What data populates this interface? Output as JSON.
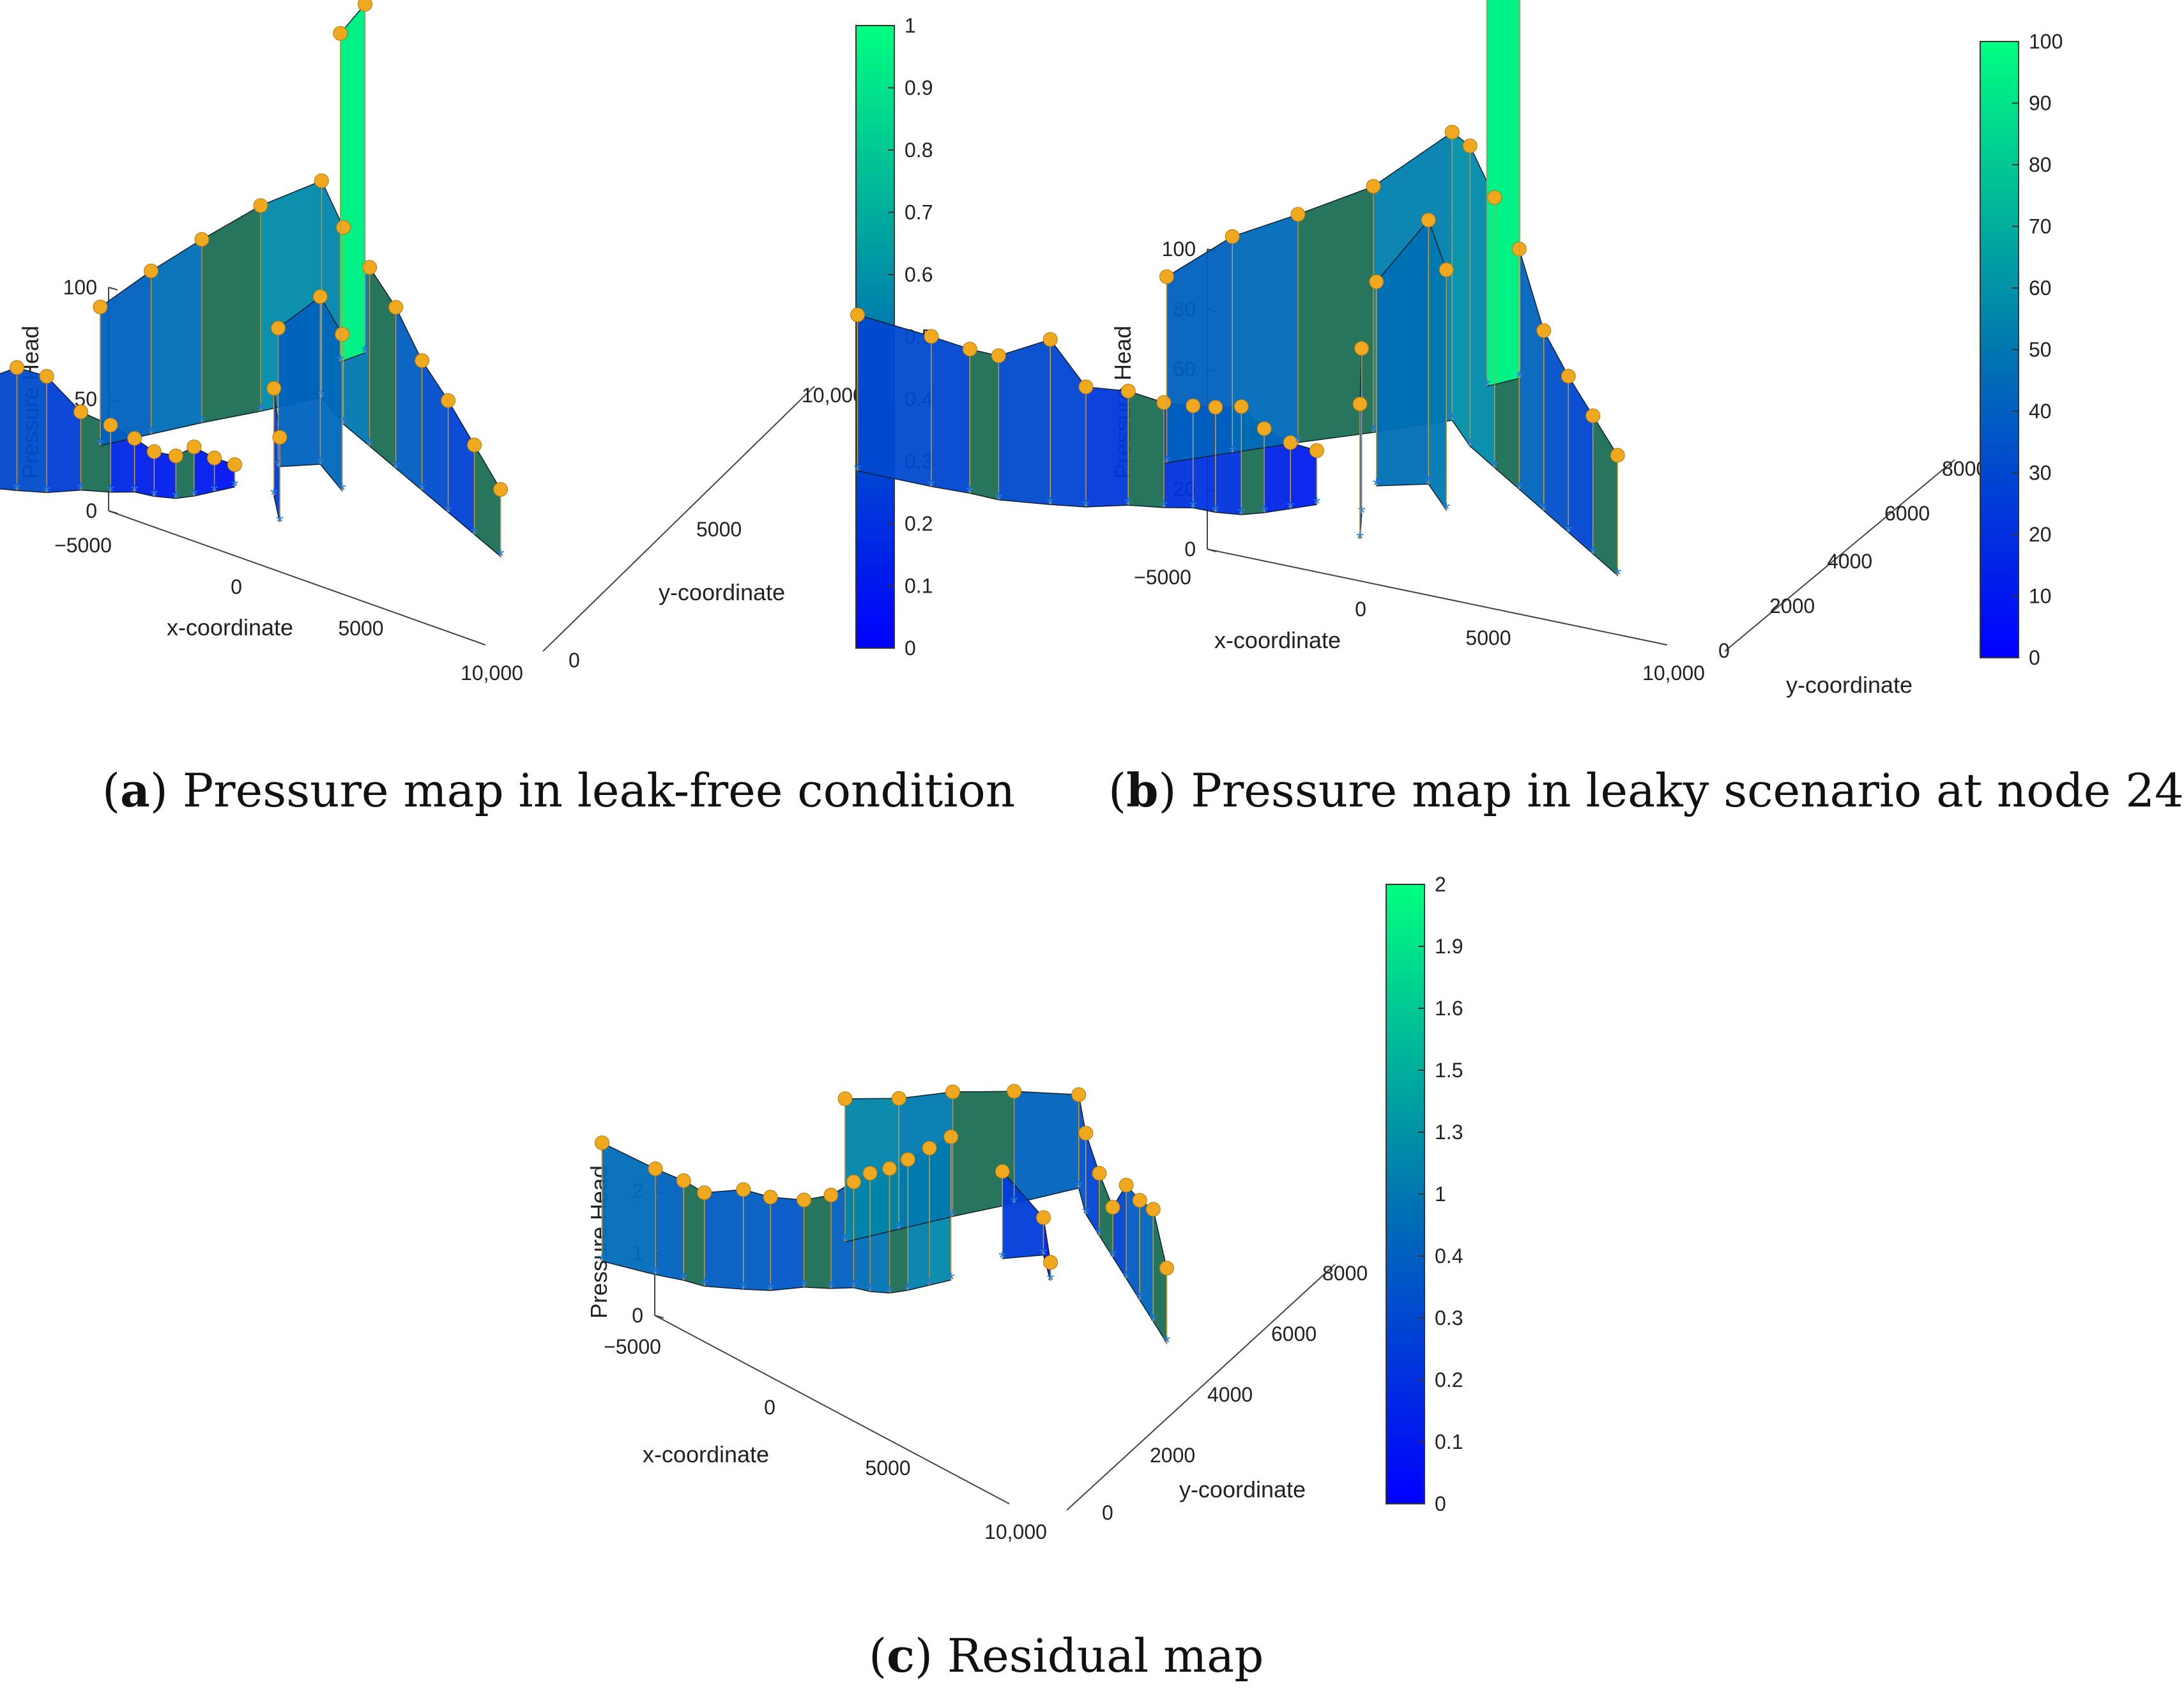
{
  "colormap": {
    "low": "#0000ff",
    "mid": "#0077b0",
    "high": "#00ff80",
    "surface_dark": "#1c6e55",
    "node_marker": "#f0a81e",
    "base_marker": "#2b7bd4"
  },
  "chart_data": [
    {
      "id": "a",
      "type": "surface3d",
      "caption_letter": "a",
      "caption_text": ") Pressure map in leak-free condition",
      "xlabel": "x-coordinate",
      "ylabel": "y-coordinate",
      "zlabel": "Pressure Head",
      "xticks": [
        "−5000",
        "0",
        "5000",
        "10,000"
      ],
      "yticks": [
        "0",
        "5000",
        "10,000"
      ],
      "zticks": [
        "0",
        "50",
        "100"
      ],
      "colorbar_range": [
        0,
        1
      ],
      "colorbar_ticks": [
        "0",
        "0.1",
        "0.2",
        "0.3",
        "0.4",
        "0.5",
        "0.6",
        "0.7",
        "0.8",
        "0.9",
        "1"
      ],
      "node_heights": [
        58,
        50,
        47,
        46,
        55,
        52,
        35,
        30,
        24,
        20,
        19,
        22,
        15,
        10,
        62,
        73,
        82,
        92,
        97,
        88,
        80,
        72,
        58,
        50,
        40,
        30,
        62,
        75,
        70,
        48,
        38,
        147,
        156
      ]
    },
    {
      "id": "b",
      "type": "surface3d",
      "caption_letter": "b",
      "caption_text": ") Pressure map in leaky scenario at node 24",
      "xlabel": "x-coordinate",
      "ylabel": "y-coordinate",
      "zlabel": "Pressure Head",
      "xticks": [
        "−5000",
        "0",
        "5000",
        "10,000"
      ],
      "yticks": [
        "0",
        "2000",
        "4000",
        "6000",
        "8000"
      ],
      "zticks": [
        "0",
        "20",
        "40",
        "60",
        "80",
        "100"
      ],
      "colorbar_range": [
        0,
        100
      ],
      "colorbar_ticks": [
        "0",
        "10",
        "20",
        "30",
        "40",
        "50",
        "60",
        "70",
        "80",
        "90",
        "100"
      ],
      "node_heights": [
        52,
        50,
        48,
        48,
        55,
        40,
        38,
        35,
        34,
        35,
        36,
        28,
        22,
        18,
        62,
        72,
        76,
        82,
        96,
        100,
        90,
        80,
        60,
        52,
        46,
        40,
        68,
        88,
        80,
        55,
        45,
        140,
        150
      ]
    },
    {
      "id": "c",
      "type": "surface3d",
      "caption_letter": "c",
      "caption_text": ") Residual map",
      "xlabel": "x-coordinate",
      "ylabel": "y-coordinate",
      "zlabel": "Pressure Head",
      "xticks": [
        "−5000",
        "0",
        "5000",
        "10,000"
      ],
      "yticks": [
        "0",
        "2000",
        "4000",
        "6000",
        "8000"
      ],
      "zticks": [
        "0",
        "1",
        "2"
      ],
      "colorbar_range": [
        0,
        2
      ],
      "colorbar_ticks": [
        "0",
        "0.1",
        "0.2",
        "0.3",
        "0.4",
        "1",
        "1.3",
        "1.5",
        "1.6",
        "1.9",
        "2"
      ],
      "node_heights": [
        1.9,
        1.7,
        1.6,
        1.5,
        1.6,
        1.5,
        1.4,
        1.5,
        1.7,
        1.9,
        2.0,
        2.1,
        2.2,
        2.3,
        2.3,
        2.1,
        2.0,
        1.8,
        1.5,
        1.3,
        1.0,
        0.8,
        1.5,
        1.6,
        1.8,
        1.2,
        1.4,
        0.6,
        0.3
      ]
    }
  ]
}
